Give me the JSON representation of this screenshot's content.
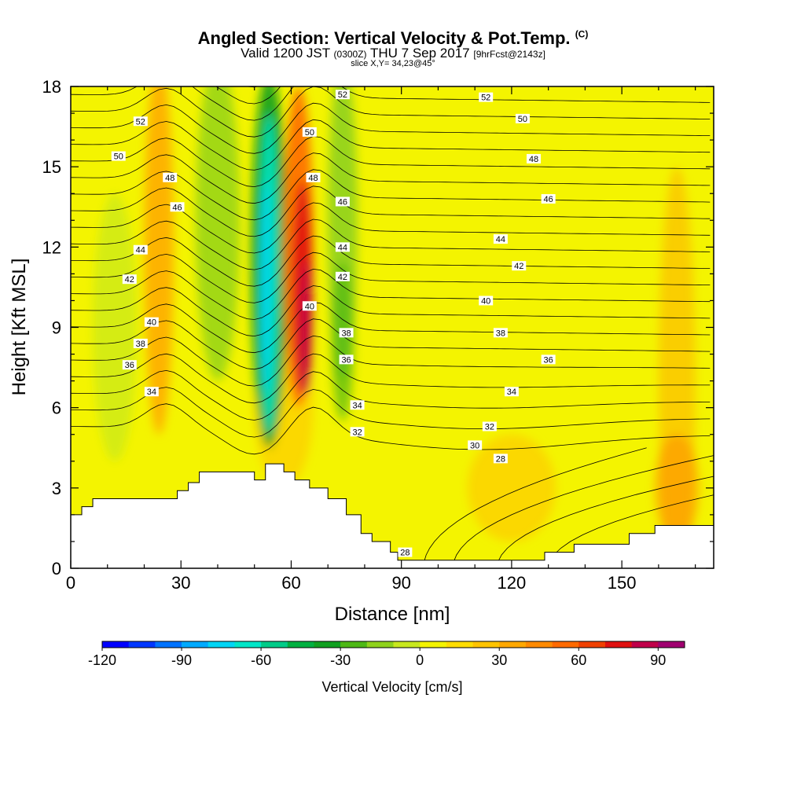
{
  "title": {
    "main": "Angled Section: Vertical Velocity & Pot.Temp.",
    "copyright": "(C)",
    "valid_pre": "Valid 1200 JST",
    "valid_utc": "(0300Z)",
    "valid_date": "THU 7 Sep 2017",
    "forecast": "[9hrFcst@2143z]",
    "slice": "slice X,Y= 34,23@45°"
  },
  "chart_data": {
    "type": "heatmap",
    "xlabel": "Distance [nm]",
    "ylabel": "Height [Kft MSL]",
    "xlim": [
      0,
      175
    ],
    "ylim": [
      0,
      18
    ],
    "xticks": [
      0,
      30,
      60,
      90,
      120,
      150
    ],
    "yticks": [
      0,
      3,
      6,
      9,
      12,
      15,
      18
    ],
    "colorbar": {
      "title": "Vertical Velocity [cm/s]",
      "ticks": [
        -120,
        -90,
        -60,
        -30,
        0,
        30,
        60,
        90
      ],
      "min": -120,
      "max": 100,
      "step": 10,
      "colors": [
        "#0000ff",
        "#0037ff",
        "#0073ff",
        "#00aaff",
        "#00d5f5",
        "#00e6c8",
        "#00cc88",
        "#00b040",
        "#10a020",
        "#4db815",
        "#8fd21c",
        "#c8e81e",
        "#f4f400",
        "#ffdd00",
        "#ffc400",
        "#ffa800",
        "#ff8a00",
        "#ff6a00",
        "#f04000",
        "#e01010",
        "#c0004a",
        "#a00070"
      ]
    },
    "terrain_profile": [
      [
        0,
        2.0
      ],
      [
        3,
        2.0
      ],
      [
        3,
        2.3
      ],
      [
        6,
        2.3
      ],
      [
        6,
        2.6
      ],
      [
        29,
        2.6
      ],
      [
        29,
        2.9
      ],
      [
        32,
        2.9
      ],
      [
        32,
        3.2
      ],
      [
        35,
        3.2
      ],
      [
        35,
        3.6
      ],
      [
        50,
        3.6
      ],
      [
        50,
        3.3
      ],
      [
        53,
        3.3
      ],
      [
        53,
        3.9
      ],
      [
        58,
        3.9
      ],
      [
        58,
        3.6
      ],
      [
        61,
        3.6
      ],
      [
        61,
        3.3
      ],
      [
        65,
        3.3
      ],
      [
        65,
        3.0
      ],
      [
        70,
        3.0
      ],
      [
        70,
        2.6
      ],
      [
        75,
        2.6
      ],
      [
        75,
        2.0
      ],
      [
        79,
        2.0
      ],
      [
        79,
        1.3
      ],
      [
        82,
        1.3
      ],
      [
        82,
        1.0
      ],
      [
        87,
        1.0
      ],
      [
        87,
        0.6
      ],
      [
        89,
        0.6
      ],
      [
        89,
        0.3
      ],
      [
        129,
        0.3
      ],
      [
        129,
        0.6
      ],
      [
        137,
        0.6
      ],
      [
        137,
        0.9
      ],
      [
        152,
        0.9
      ],
      [
        152,
        1.3
      ],
      [
        159,
        1.3
      ],
      [
        159,
        1.6
      ],
      [
        175,
        1.6
      ]
    ],
    "theta_labels": [
      {
        "x": 19,
        "y": 16.7,
        "v": "52"
      },
      {
        "x": 74,
        "y": 17.7,
        "v": "52"
      },
      {
        "x": 113,
        "y": 17.6,
        "v": "52"
      },
      {
        "x": 13,
        "y": 15.4,
        "v": "50"
      },
      {
        "x": 65,
        "y": 16.3,
        "v": "50"
      },
      {
        "x": 123,
        "y": 16.8,
        "v": "50"
      },
      {
        "x": 27,
        "y": 14.6,
        "v": "48"
      },
      {
        "x": 66,
        "y": 14.6,
        "v": "48"
      },
      {
        "x": 126,
        "y": 15.3,
        "v": "48"
      },
      {
        "x": 29,
        "y": 13.5,
        "v": "46"
      },
      {
        "x": 74,
        "y": 13.7,
        "v": "46"
      },
      {
        "x": 130,
        "y": 13.8,
        "v": "46"
      },
      {
        "x": 19,
        "y": 11.9,
        "v": "44"
      },
      {
        "x": 74,
        "y": 12.0,
        "v": "44"
      },
      {
        "x": 117,
        "y": 12.3,
        "v": "44"
      },
      {
        "x": 16,
        "y": 10.8,
        "v": "42"
      },
      {
        "x": 74,
        "y": 10.9,
        "v": "42"
      },
      {
        "x": 122,
        "y": 11.3,
        "v": "42"
      },
      {
        "x": 22,
        "y": 9.2,
        "v": "40"
      },
      {
        "x": 65,
        "y": 9.8,
        "v": "40"
      },
      {
        "x": 113,
        "y": 10.0,
        "v": "40"
      },
      {
        "x": 19,
        "y": 8.4,
        "v": "38"
      },
      {
        "x": 75,
        "y": 8.8,
        "v": "38"
      },
      {
        "x": 117,
        "y": 8.8,
        "v": "38"
      },
      {
        "x": 16,
        "y": 7.6,
        "v": "36"
      },
      {
        "x": 75,
        "y": 7.8,
        "v": "36"
      },
      {
        "x": 130,
        "y": 7.8,
        "v": "36"
      },
      {
        "x": 22,
        "y": 6.6,
        "v": "34"
      },
      {
        "x": 78,
        "y": 6.1,
        "v": "34"
      },
      {
        "x": 120,
        "y": 6.6,
        "v": "34"
      },
      {
        "x": 78,
        "y": 5.1,
        "v": "32"
      },
      {
        "x": 114,
        "y": 5.3,
        "v": "32"
      },
      {
        "x": 110,
        "y": 4.6,
        "v": "30"
      },
      {
        "x": 117,
        "y": 4.1,
        "v": "28"
      },
      {
        "x": 91,
        "y": 0.6,
        "v": "28"
      }
    ]
  }
}
